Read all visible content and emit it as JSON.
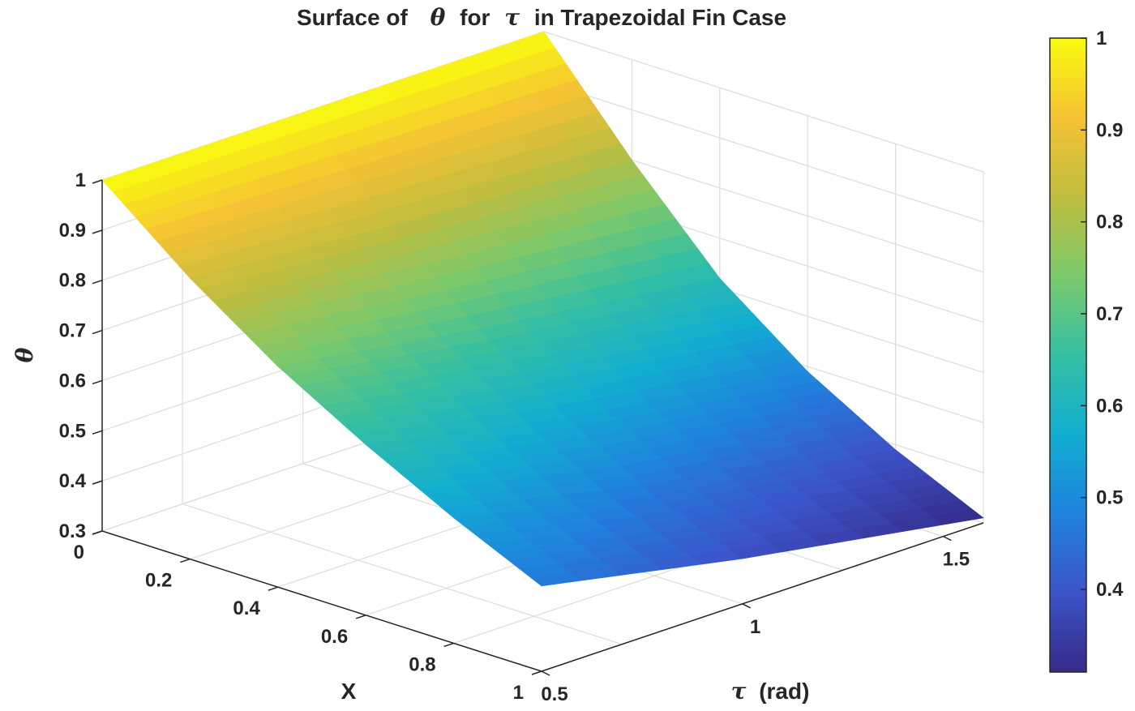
{
  "chart_data": {
    "type": "surface",
    "title": {
      "prefix": "Surface  of",
      "sym1": "θ",
      "mid": "for",
      "sym2": "τ",
      "suffix": "in  Trapezoidal  Fin  Case"
    },
    "xlabel": "X",
    "ylabel": {
      "sym": "τ",
      "unit": "(rad)"
    },
    "zlabel": "θ",
    "xlim": [
      0,
      1
    ],
    "ylim": [
      0.5,
      1.6
    ],
    "zlim": [
      0.3,
      1
    ],
    "x_ticks": [
      "0",
      "0.2",
      "0.4",
      "0.6",
      "0.8",
      "1"
    ],
    "x_tick_values": [
      0,
      0.2,
      0.4,
      0.6,
      0.8,
      1
    ],
    "y_ticks": [
      "0.5",
      "1",
      "1.5"
    ],
    "y_tick_values": [
      0.5,
      1,
      1.5
    ],
    "z_ticks": [
      "0.3",
      "0.4",
      "0.5",
      "0.6",
      "0.7",
      "0.8",
      "0.9",
      "1"
    ],
    "z_tick_values": [
      0.3,
      0.4,
      0.5,
      0.6,
      0.7,
      0.8,
      0.9,
      1
    ],
    "grid": true,
    "colormap": "parula",
    "colorbar": {
      "ticks": [
        "0.4",
        "0.5",
        "0.6",
        "0.7",
        "0.8",
        "0.9",
        "1"
      ],
      "tick_values": [
        0.4,
        0.5,
        0.6,
        0.7,
        0.8,
        0.9,
        1
      ],
      "range": [
        0.31,
        1.0
      ],
      "placement": "right"
    },
    "surface": {
      "x": [
        0,
        0.2,
        0.4,
        0.6,
        0.8,
        1.0
      ],
      "tau": [
        0.5,
        0.6,
        0.7,
        0.8,
        0.9,
        1.0,
        1.1,
        1.2,
        1.3,
        1.4,
        1.5,
        1.6
      ],
      "theta_at_tau_0_5": [
        1.0,
        0.86,
        0.74,
        0.64,
        0.55,
        0.47
      ],
      "theta_at_tau_1_0": [
        1.0,
        0.83,
        0.68,
        0.56,
        0.46,
        0.39
      ],
      "theta_at_tau_1_6": [
        1.0,
        0.8,
        0.62,
        0.49,
        0.39,
        0.31
      ]
    }
  }
}
